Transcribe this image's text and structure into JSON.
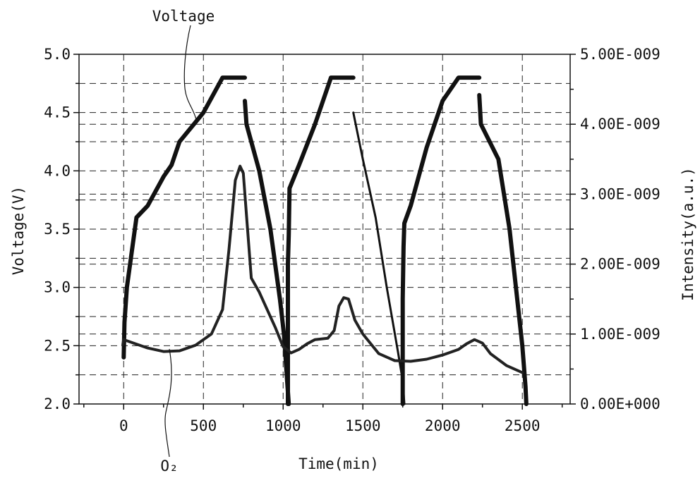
{
  "chart_data": {
    "type": "line",
    "xlabel": "Time(min)",
    "ylabel_left": "Voltage(V)",
    "ylabel_right": "Intensity(a.u.)",
    "xlim": [
      -280,
      2800
    ],
    "ylim_left": [
      2.0,
      5.0
    ],
    "ylim_right": [
      0,
      5e-09
    ],
    "x_ticks": [
      0,
      500,
      1000,
      1500,
      2000,
      2500
    ],
    "x_tick_labels": [
      "0",
      "500",
      "1000",
      "1500",
      "2000",
      "2500"
    ],
    "y_left_ticks": [
      2.0,
      2.5,
      3.0,
      3.5,
      4.0,
      4.5,
      5.0
    ],
    "y_left_tick_labels": [
      "2.0",
      "2.5",
      "3.0",
      "3.5",
      "4.0",
      "4.5",
      "5.0"
    ],
    "y_right_ticks": [
      0,
      1e-09,
      2e-09,
      3e-09,
      4e-09,
      5e-09
    ],
    "y_right_tick_labels": [
      "0.00E+000",
      "1.00E-009",
      "2.00E-009",
      "3.00E-009",
      "4.00E-009",
      "5.00E-009"
    ],
    "grid": true,
    "annotations": [
      {
        "text": "Voltage"
      },
      {
        "text": "O₂"
      }
    ],
    "series": [
      {
        "name": "Voltage",
        "axis": "left",
        "segments": [
          [
            [
              0,
              2.4
            ],
            [
              5,
              2.7
            ],
            [
              20,
              3.0
            ],
            [
              80,
              3.6
            ],
            [
              150,
              3.7
            ],
            [
              250,
              3.95
            ],
            [
              300,
              4.05
            ],
            [
              350,
              4.25
            ],
            [
              500,
              4.5
            ],
            [
              620,
              4.8
            ],
            [
              760,
              4.8
            ]
          ],
          [
            [
              760,
              4.6
            ],
            [
              770,
              4.4
            ],
            [
              850,
              4.0
            ],
            [
              920,
              3.5
            ],
            [
              980,
              2.9
            ],
            [
              1005,
              2.6
            ],
            [
              1025,
              2.2
            ],
            [
              1035,
              2.0
            ]
          ],
          [
            [
              1030,
              2.0
            ],
            [
              1030,
              3.2
            ],
            [
              1035,
              3.45
            ],
            [
              1040,
              3.85
            ],
            [
              1100,
              4.05
            ],
            [
              1200,
              4.4
            ],
            [
              1300,
              4.8
            ],
            [
              1440,
              4.8
            ]
          ],
          [
            [
              1440,
              4.5
            ],
            [
              1500,
              4.1
            ],
            [
              1580,
              3.6
            ],
            [
              1650,
              3.0
            ],
            [
              1720,
              2.45
            ],
            [
              1750,
              2.2
            ],
            [
              1760,
              2.0
            ]
          ],
          [
            [
              1750,
              2.0
            ],
            [
              1750,
              2.9
            ],
            [
              1755,
              3.35
            ],
            [
              1760,
              3.55
            ],
            [
              1800,
              3.7
            ],
            [
              1900,
              4.2
            ],
            [
              2000,
              4.6
            ],
            [
              2100,
              4.8
            ],
            [
              2230,
              4.8
            ]
          ],
          [
            [
              2230,
              4.65
            ],
            [
              2240,
              4.4
            ],
            [
              2350,
              4.1
            ],
            [
              2420,
              3.5
            ],
            [
              2500,
              2.5
            ],
            [
              2520,
              2.15
            ],
            [
              2525,
              2.0
            ]
          ]
        ]
      },
      {
        "name": "O₂",
        "axis": "right",
        "points": [
          [
            -5,
            8.5e-10
          ],
          [
            0,
            9.2e-10
          ],
          [
            50,
            8.8e-10
          ],
          [
            150,
            8e-10
          ],
          [
            250,
            7.5e-10
          ],
          [
            350,
            7.6e-10
          ],
          [
            450,
            8.4e-10
          ],
          [
            550,
            1e-09
          ],
          [
            620,
            1.35e-09
          ],
          [
            660,
            2.2e-09
          ],
          [
            700,
            3.2e-09
          ],
          [
            730,
            3.4e-09
          ],
          [
            750,
            3.3e-09
          ],
          [
            770,
            2.7e-09
          ],
          [
            800,
            1.8e-09
          ],
          [
            850,
            1.6e-09
          ],
          [
            900,
            1.35e-09
          ],
          [
            950,
            1.1e-09
          ],
          [
            1000,
            8.2e-10
          ],
          [
            1050,
            7.3e-10
          ],
          [
            1100,
            7.8e-10
          ],
          [
            1150,
            8.6e-10
          ],
          [
            1200,
            9.2e-10
          ],
          [
            1280,
            9.4e-10
          ],
          [
            1320,
            1.05e-09
          ],
          [
            1350,
            1.4e-09
          ],
          [
            1380,
            1.52e-09
          ],
          [
            1410,
            1.5e-09
          ],
          [
            1450,
            1.2e-09
          ],
          [
            1500,
            1e-09
          ],
          [
            1600,
            7.2e-10
          ],
          [
            1700,
            6.2e-10
          ],
          [
            1800,
            6.1e-10
          ],
          [
            1900,
            6.4e-10
          ],
          [
            2000,
            7e-10
          ],
          [
            2100,
            7.8e-10
          ],
          [
            2150,
            8.6e-10
          ],
          [
            2200,
            9.2e-10
          ],
          [
            2250,
            8.7e-10
          ],
          [
            2300,
            7.2e-10
          ],
          [
            2400,
            5.5e-10
          ],
          [
            2500,
            4.5e-10
          ]
        ]
      }
    ]
  }
}
